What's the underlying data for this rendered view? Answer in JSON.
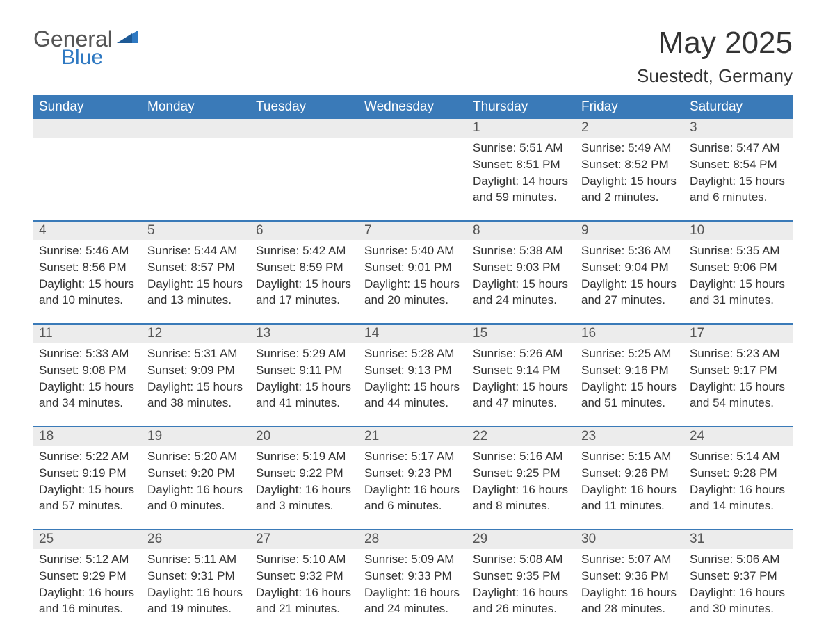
{
  "logo": {
    "general": "General",
    "blue": "Blue"
  },
  "title": "May 2025",
  "location": "Suestedt, Germany",
  "colors": {
    "header_bg": "#3a7ab8",
    "header_text": "#ffffff",
    "day_number_bg": "#ececec",
    "day_number_text": "#555555",
    "body_text": "#333333",
    "row_border": "#3a7ab8",
    "logo_blue": "#2f79c2"
  },
  "weekdays": [
    "Sunday",
    "Monday",
    "Tuesday",
    "Wednesday",
    "Thursday",
    "Friday",
    "Saturday"
  ],
  "weeks": [
    [
      null,
      null,
      null,
      null,
      {
        "n": "1",
        "sunrise": "Sunrise: 5:51 AM",
        "sunset": "Sunset: 8:51 PM",
        "daylight": "Daylight: 14 hours and 59 minutes."
      },
      {
        "n": "2",
        "sunrise": "Sunrise: 5:49 AM",
        "sunset": "Sunset: 8:52 PM",
        "daylight": "Daylight: 15 hours and 2 minutes."
      },
      {
        "n": "3",
        "sunrise": "Sunrise: 5:47 AM",
        "sunset": "Sunset: 8:54 PM",
        "daylight": "Daylight: 15 hours and 6 minutes."
      }
    ],
    [
      {
        "n": "4",
        "sunrise": "Sunrise: 5:46 AM",
        "sunset": "Sunset: 8:56 PM",
        "daylight": "Daylight: 15 hours and 10 minutes."
      },
      {
        "n": "5",
        "sunrise": "Sunrise: 5:44 AM",
        "sunset": "Sunset: 8:57 PM",
        "daylight": "Daylight: 15 hours and 13 minutes."
      },
      {
        "n": "6",
        "sunrise": "Sunrise: 5:42 AM",
        "sunset": "Sunset: 8:59 PM",
        "daylight": "Daylight: 15 hours and 17 minutes."
      },
      {
        "n": "7",
        "sunrise": "Sunrise: 5:40 AM",
        "sunset": "Sunset: 9:01 PM",
        "daylight": "Daylight: 15 hours and 20 minutes."
      },
      {
        "n": "8",
        "sunrise": "Sunrise: 5:38 AM",
        "sunset": "Sunset: 9:03 PM",
        "daylight": "Daylight: 15 hours and 24 minutes."
      },
      {
        "n": "9",
        "sunrise": "Sunrise: 5:36 AM",
        "sunset": "Sunset: 9:04 PM",
        "daylight": "Daylight: 15 hours and 27 minutes."
      },
      {
        "n": "10",
        "sunrise": "Sunrise: 5:35 AM",
        "sunset": "Sunset: 9:06 PM",
        "daylight": "Daylight: 15 hours and 31 minutes."
      }
    ],
    [
      {
        "n": "11",
        "sunrise": "Sunrise: 5:33 AM",
        "sunset": "Sunset: 9:08 PM",
        "daylight": "Daylight: 15 hours and 34 minutes."
      },
      {
        "n": "12",
        "sunrise": "Sunrise: 5:31 AM",
        "sunset": "Sunset: 9:09 PM",
        "daylight": "Daylight: 15 hours and 38 minutes."
      },
      {
        "n": "13",
        "sunrise": "Sunrise: 5:29 AM",
        "sunset": "Sunset: 9:11 PM",
        "daylight": "Daylight: 15 hours and 41 minutes."
      },
      {
        "n": "14",
        "sunrise": "Sunrise: 5:28 AM",
        "sunset": "Sunset: 9:13 PM",
        "daylight": "Daylight: 15 hours and 44 minutes."
      },
      {
        "n": "15",
        "sunrise": "Sunrise: 5:26 AM",
        "sunset": "Sunset: 9:14 PM",
        "daylight": "Daylight: 15 hours and 47 minutes."
      },
      {
        "n": "16",
        "sunrise": "Sunrise: 5:25 AM",
        "sunset": "Sunset: 9:16 PM",
        "daylight": "Daylight: 15 hours and 51 minutes."
      },
      {
        "n": "17",
        "sunrise": "Sunrise: 5:23 AM",
        "sunset": "Sunset: 9:17 PM",
        "daylight": "Daylight: 15 hours and 54 minutes."
      }
    ],
    [
      {
        "n": "18",
        "sunrise": "Sunrise: 5:22 AM",
        "sunset": "Sunset: 9:19 PM",
        "daylight": "Daylight: 15 hours and 57 minutes."
      },
      {
        "n": "19",
        "sunrise": "Sunrise: 5:20 AM",
        "sunset": "Sunset: 9:20 PM",
        "daylight": "Daylight: 16 hours and 0 minutes."
      },
      {
        "n": "20",
        "sunrise": "Sunrise: 5:19 AM",
        "sunset": "Sunset: 9:22 PM",
        "daylight": "Daylight: 16 hours and 3 minutes."
      },
      {
        "n": "21",
        "sunrise": "Sunrise: 5:17 AM",
        "sunset": "Sunset: 9:23 PM",
        "daylight": "Daylight: 16 hours and 6 minutes."
      },
      {
        "n": "22",
        "sunrise": "Sunrise: 5:16 AM",
        "sunset": "Sunset: 9:25 PM",
        "daylight": "Daylight: 16 hours and 8 minutes."
      },
      {
        "n": "23",
        "sunrise": "Sunrise: 5:15 AM",
        "sunset": "Sunset: 9:26 PM",
        "daylight": "Daylight: 16 hours and 11 minutes."
      },
      {
        "n": "24",
        "sunrise": "Sunrise: 5:14 AM",
        "sunset": "Sunset: 9:28 PM",
        "daylight": "Daylight: 16 hours and 14 minutes."
      }
    ],
    [
      {
        "n": "25",
        "sunrise": "Sunrise: 5:12 AM",
        "sunset": "Sunset: 9:29 PM",
        "daylight": "Daylight: 16 hours and 16 minutes."
      },
      {
        "n": "26",
        "sunrise": "Sunrise: 5:11 AM",
        "sunset": "Sunset: 9:31 PM",
        "daylight": "Daylight: 16 hours and 19 minutes."
      },
      {
        "n": "27",
        "sunrise": "Sunrise: 5:10 AM",
        "sunset": "Sunset: 9:32 PM",
        "daylight": "Daylight: 16 hours and 21 minutes."
      },
      {
        "n": "28",
        "sunrise": "Sunrise: 5:09 AM",
        "sunset": "Sunset: 9:33 PM",
        "daylight": "Daylight: 16 hours and 24 minutes."
      },
      {
        "n": "29",
        "sunrise": "Sunrise: 5:08 AM",
        "sunset": "Sunset: 9:35 PM",
        "daylight": "Daylight: 16 hours and 26 minutes."
      },
      {
        "n": "30",
        "sunrise": "Sunrise: 5:07 AM",
        "sunset": "Sunset: 9:36 PM",
        "daylight": "Daylight: 16 hours and 28 minutes."
      },
      {
        "n": "31",
        "sunrise": "Sunrise: 5:06 AM",
        "sunset": "Sunset: 9:37 PM",
        "daylight": "Daylight: 16 hours and 30 minutes."
      }
    ]
  ]
}
